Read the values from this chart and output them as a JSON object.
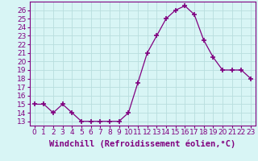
{
  "x": [
    0,
    1,
    2,
    3,
    4,
    5,
    6,
    7,
    8,
    9,
    10,
    11,
    12,
    13,
    14,
    15,
    16,
    17,
    18,
    19,
    20,
    21,
    22,
    23
  ],
  "y": [
    15,
    15,
    14,
    15,
    14,
    13,
    13,
    13,
    13,
    13,
    14,
    17.5,
    21,
    23,
    25,
    26,
    26.5,
    25.5,
    22.5,
    20.5,
    19,
    19,
    19,
    18
  ],
  "line_color": "#800080",
  "marker": "+",
  "marker_size": 4,
  "bg_color": "#d8f5f5",
  "grid_color": "#b8dede",
  "xlabel": "Windchill (Refroidissement éolien,°C)",
  "xlabel_fontsize": 7.5,
  "yticks": [
    13,
    14,
    15,
    16,
    17,
    18,
    19,
    20,
    21,
    22,
    23,
    24,
    25,
    26
  ],
  "xticks": [
    0,
    1,
    2,
    3,
    4,
    5,
    6,
    7,
    8,
    9,
    10,
    11,
    12,
    13,
    14,
    15,
    16,
    17,
    18,
    19,
    20,
    21,
    22,
    23
  ],
  "ylim": [
    12.5,
    27
  ],
  "xlim": [
    -0.5,
    23.5
  ],
  "tick_fontsize": 6.5
}
